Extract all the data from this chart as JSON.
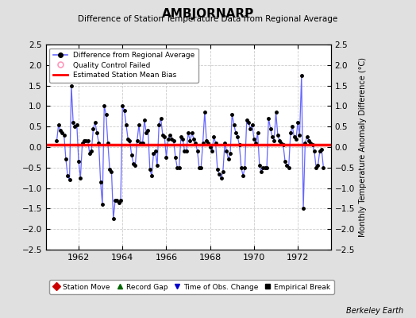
{
  "title": "AMBJORNARP",
  "subtitle": "Difference of Station Temperature Data from Regional Average",
  "ylabel": "Monthly Temperature Anomaly Difference (°C)",
  "xlabel_years": [
    1962,
    1964,
    1966,
    1968,
    1970,
    1972
  ],
  "xlim": [
    1960.5,
    1973.5
  ],
  "ylim": [
    -2.5,
    2.5
  ],
  "yticks": [
    -2.5,
    -2.0,
    -1.5,
    -1.0,
    -0.5,
    0.0,
    0.5,
    1.0,
    1.5,
    2.0,
    2.5
  ],
  "bias_line": 0.05,
  "line_color": "#6666ff",
  "bias_color": "#ff0000",
  "bg_color": "#e0e0e0",
  "plot_bg": "#ffffff",
  "berkeley_earth_text": "Berkeley Earth",
  "legend1_entries": [
    "Difference from Regional Average",
    "Quality Control Failed",
    "Estimated Station Mean Bias"
  ],
  "legend2_entries": [
    {
      "label": "Station Move",
      "color": "#cc0000",
      "marker": "D"
    },
    {
      "label": "Record Gap",
      "color": "#006600",
      "marker": "^"
    },
    {
      "label": "Time of Obs. Change",
      "color": "#0000cc",
      "marker": "v"
    },
    {
      "label": "Empirical Break",
      "color": "#000000",
      "marker": "s"
    }
  ],
  "data": [
    [
      1961.0,
      0.15
    ],
    [
      1961.083,
      0.55
    ],
    [
      1961.167,
      0.4
    ],
    [
      1961.25,
      0.35
    ],
    [
      1961.333,
      0.3
    ],
    [
      1961.417,
      -0.3
    ],
    [
      1961.5,
      -0.7
    ],
    [
      1961.583,
      -0.8
    ],
    [
      1961.667,
      1.5
    ],
    [
      1961.75,
      0.6
    ],
    [
      1961.833,
      0.5
    ],
    [
      1961.917,
      0.55
    ],
    [
      1962.0,
      -0.35
    ],
    [
      1962.083,
      -0.75
    ],
    [
      1962.167,
      0.1
    ],
    [
      1962.25,
      0.15
    ],
    [
      1962.333,
      0.15
    ],
    [
      1962.417,
      0.15
    ],
    [
      1962.5,
      -0.15
    ],
    [
      1962.583,
      -0.1
    ],
    [
      1962.667,
      0.45
    ],
    [
      1962.75,
      0.6
    ],
    [
      1962.833,
      0.35
    ],
    [
      1962.917,
      0.1
    ],
    [
      1963.0,
      -0.85
    ],
    [
      1963.083,
      -1.4
    ],
    [
      1963.167,
      1.0
    ],
    [
      1963.25,
      0.8
    ],
    [
      1963.333,
      0.1
    ],
    [
      1963.417,
      -0.55
    ],
    [
      1963.5,
      -0.6
    ],
    [
      1963.583,
      -1.75
    ],
    [
      1963.667,
      -1.3
    ],
    [
      1963.75,
      -1.3
    ],
    [
      1963.833,
      -1.35
    ],
    [
      1963.917,
      -1.3
    ],
    [
      1964.0,
      1.0
    ],
    [
      1964.083,
      0.9
    ],
    [
      1964.167,
      0.55
    ],
    [
      1964.25,
      0.2
    ],
    [
      1964.333,
      0.15
    ],
    [
      1964.417,
      -0.2
    ],
    [
      1964.5,
      -0.4
    ],
    [
      1964.583,
      -0.45
    ],
    [
      1964.667,
      0.15
    ],
    [
      1964.75,
      0.55
    ],
    [
      1964.833,
      0.1
    ],
    [
      1964.917,
      0.1
    ],
    [
      1965.0,
      0.65
    ],
    [
      1965.083,
      0.35
    ],
    [
      1965.167,
      0.4
    ],
    [
      1965.25,
      -0.55
    ],
    [
      1965.333,
      -0.7
    ],
    [
      1965.417,
      -0.15
    ],
    [
      1965.5,
      -0.1
    ],
    [
      1965.583,
      -0.45
    ],
    [
      1965.667,
      0.55
    ],
    [
      1965.75,
      0.7
    ],
    [
      1965.833,
      0.3
    ],
    [
      1965.917,
      0.25
    ],
    [
      1966.0,
      -0.25
    ],
    [
      1966.083,
      0.2
    ],
    [
      1966.167,
      0.3
    ],
    [
      1966.25,
      0.2
    ],
    [
      1966.333,
      0.15
    ],
    [
      1966.417,
      -0.25
    ],
    [
      1966.5,
      -0.5
    ],
    [
      1966.583,
      -0.5
    ],
    [
      1966.667,
      0.25
    ],
    [
      1966.75,
      0.2
    ],
    [
      1966.833,
      -0.1
    ],
    [
      1966.917,
      -0.1
    ],
    [
      1967.0,
      0.35
    ],
    [
      1967.083,
      0.15
    ],
    [
      1967.167,
      0.35
    ],
    [
      1967.25,
      0.2
    ],
    [
      1967.333,
      0.1
    ],
    [
      1967.417,
      -0.1
    ],
    [
      1967.5,
      -0.5
    ],
    [
      1967.583,
      -0.5
    ],
    [
      1967.667,
      0.1
    ],
    [
      1967.75,
      0.85
    ],
    [
      1967.833,
      0.15
    ],
    [
      1967.917,
      0.1
    ],
    [
      1968.0,
      0.0
    ],
    [
      1968.083,
      -0.1
    ],
    [
      1968.167,
      0.25
    ],
    [
      1968.25,
      0.1
    ],
    [
      1968.333,
      -0.55
    ],
    [
      1968.417,
      -0.65
    ],
    [
      1968.5,
      -0.75
    ],
    [
      1968.583,
      -0.6
    ],
    [
      1968.667,
      0.1
    ],
    [
      1968.75,
      -0.1
    ],
    [
      1968.833,
      -0.3
    ],
    [
      1968.917,
      -0.15
    ],
    [
      1969.0,
      0.8
    ],
    [
      1969.083,
      0.55
    ],
    [
      1969.167,
      0.35
    ],
    [
      1969.25,
      0.25
    ],
    [
      1969.333,
      0.05
    ],
    [
      1969.417,
      -0.5
    ],
    [
      1969.5,
      -0.7
    ],
    [
      1969.583,
      -0.5
    ],
    [
      1969.667,
      0.65
    ],
    [
      1969.75,
      0.6
    ],
    [
      1969.833,
      0.45
    ],
    [
      1969.917,
      0.55
    ],
    [
      1970.0,
      0.2
    ],
    [
      1970.083,
      0.1
    ],
    [
      1970.167,
      0.35
    ],
    [
      1970.25,
      -0.45
    ],
    [
      1970.333,
      -0.6
    ],
    [
      1970.417,
      -0.5
    ],
    [
      1970.5,
      -0.5
    ],
    [
      1970.583,
      -0.5
    ],
    [
      1970.667,
      0.7
    ],
    [
      1970.75,
      0.45
    ],
    [
      1970.833,
      0.25
    ],
    [
      1970.917,
      0.15
    ],
    [
      1971.0,
      0.85
    ],
    [
      1971.083,
      0.3
    ],
    [
      1971.167,
      0.15
    ],
    [
      1971.25,
      0.1
    ],
    [
      1971.333,
      0.05
    ],
    [
      1971.417,
      -0.35
    ],
    [
      1971.5,
      -0.45
    ],
    [
      1971.583,
      -0.5
    ],
    [
      1971.667,
      0.35
    ],
    [
      1971.75,
      0.5
    ],
    [
      1971.833,
      0.25
    ],
    [
      1971.917,
      0.2
    ],
    [
      1972.0,
      0.6
    ],
    [
      1972.083,
      0.3
    ],
    [
      1972.167,
      1.75
    ],
    [
      1972.25,
      -1.5
    ],
    [
      1972.333,
      0.1
    ],
    [
      1972.417,
      0.25
    ],
    [
      1972.5,
      0.15
    ],
    [
      1972.583,
      0.1
    ],
    [
      1972.667,
      0.05
    ],
    [
      1972.75,
      -0.1
    ],
    [
      1972.833,
      -0.5
    ],
    [
      1972.917,
      -0.45
    ],
    [
      1973.0,
      -0.1
    ],
    [
      1973.083,
      -0.05
    ],
    [
      1973.167,
      -0.5
    ]
  ]
}
